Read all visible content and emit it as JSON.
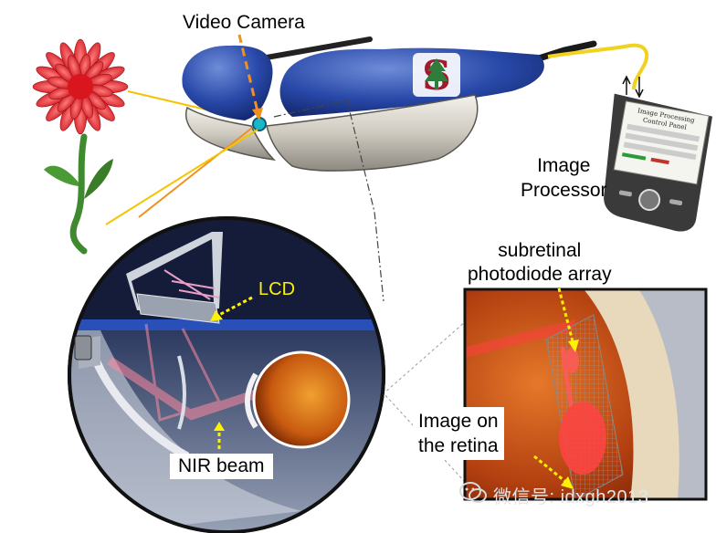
{
  "labels": {
    "video_camera": "Video Camera",
    "image_processor_line1": "Image",
    "image_processor_line2": "Processor",
    "subretinal_line1": "subretinal",
    "subretinal_line2": "photodiode array",
    "lcd": "LCD",
    "nir_beam": "NIR beam",
    "image_retina_line1": "Image on",
    "image_retina_line2": "the retina"
  },
  "device_panel": {
    "title_line1": "Image Processing",
    "title_line2": "Control Panel"
  },
  "watermark": "微信号: idxgh2013",
  "colors": {
    "goggle_blue": "#1f3f9c",
    "logo_red": "#a01c2c",
    "flower_red": "#e2232a",
    "stem_green": "#3f8a2e",
    "arrow_yellow": "#f5c400",
    "camera_arrow_orange": "#f0901e",
    "retina_orange": "#d55a14",
    "label_yellow": "#fff200"
  },
  "icons": [
    "wechat-icon",
    "arrow-icon"
  ]
}
